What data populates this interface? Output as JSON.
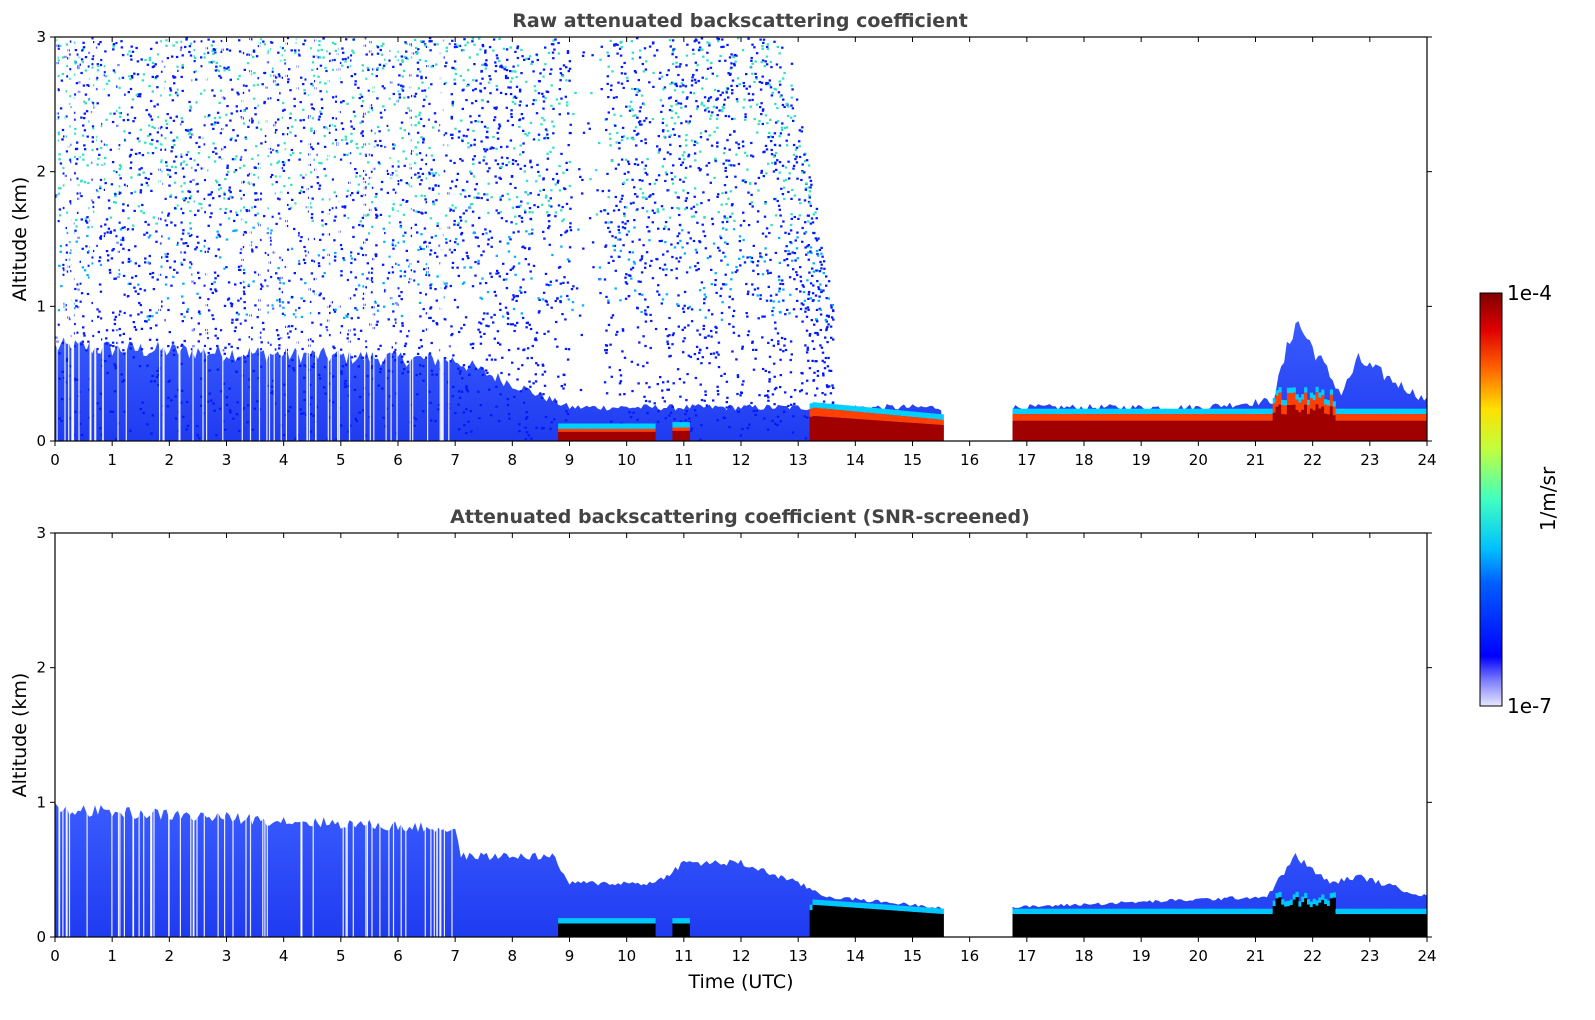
{
  "chart_data": [
    {
      "type": "heatmap",
      "title": "Raw attenuated backscattering coefficient",
      "xlabel": "",
      "ylabel": "Altitude (km)",
      "xlim": [
        0,
        24
      ],
      "ylim": [
        0,
        3
      ],
      "x_ticks": [
        "0",
        "1",
        "2",
        "3",
        "4",
        "5",
        "6",
        "7",
        "8",
        "9",
        "10",
        "11",
        "12",
        "13",
        "14",
        "15",
        "16",
        "17",
        "18",
        "19",
        "20",
        "21",
        "22",
        "23",
        "24"
      ],
      "y_ticks": [
        "0",
        "1",
        "2",
        "3"
      ],
      "data_gaps_utc": [
        [
          15.55,
          16.75
        ]
      ],
      "noise_extent": {
        "until_hour": 13.6,
        "max_altitude_km": 3.0
      },
      "aerosol_layer_top_km": {
        "hours": [
          0,
          7,
          9,
          13.5,
          15.5,
          16.75,
          20,
          21.3,
          21.7,
          22.5,
          22.8,
          24
        ],
        "tops": [
          0.7,
          0.6,
          0.25,
          0.25,
          0.25,
          0.25,
          0.25,
          0.3,
          0.9,
          0.35,
          0.6,
          0.3
        ]
      },
      "colorbar": {
        "min": "1e-7",
        "max": "1e-4",
        "label": "1/m/sr",
        "colormap": "jet"
      }
    },
    {
      "type": "heatmap",
      "title": "Attenuated backscattering coefficient (SNR-screened)",
      "xlabel": "Time (UTC)",
      "ylabel": "Altitude (km)",
      "xlim": [
        0,
        24
      ],
      "ylim": [
        0,
        3
      ],
      "x_ticks": [
        "0",
        "1",
        "2",
        "3",
        "4",
        "5",
        "6",
        "7",
        "8",
        "9",
        "10",
        "11",
        "12",
        "13",
        "14",
        "15",
        "16",
        "17",
        "18",
        "19",
        "20",
        "21",
        "22",
        "23",
        "24"
      ],
      "y_ticks": [
        "0",
        "1",
        "2",
        "3"
      ],
      "data_gaps_utc": [
        [
          15.55,
          16.75
        ]
      ],
      "layer_top_km": {
        "hours": [
          0,
          7,
          7.1,
          8.7,
          9,
          10.5,
          11,
          12,
          13,
          13.5,
          15.5,
          16.75,
          21.2,
          21.7,
          22.3,
          22.8,
          24
        ],
        "tops": [
          0.95,
          0.8,
          0.6,
          0.6,
          0.4,
          0.4,
          0.55,
          0.55,
          0.4,
          0.3,
          0.22,
          0.22,
          0.3,
          0.6,
          0.4,
          0.45,
          0.3
        ]
      },
      "colorbar": {
        "min": "1e-7",
        "max": "1e-4",
        "label": "1/m/sr",
        "colormap": "jet"
      }
    }
  ],
  "colors": {
    "background": "#ffffff",
    "axes": "#000000",
    "title": "#444444",
    "saturated_mask": "#000000"
  }
}
